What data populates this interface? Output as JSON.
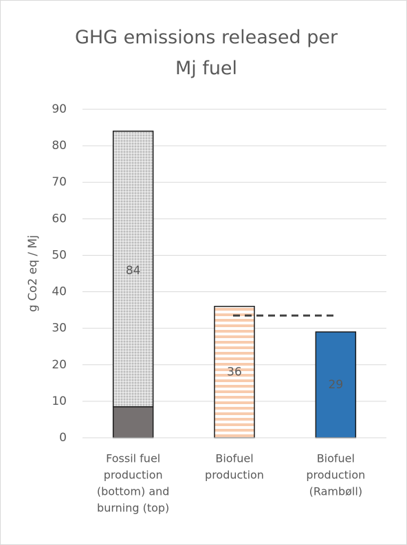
{
  "chart_data": {
    "type": "bar",
    "title": "GHG emissions released per Mj fuel",
    "y_label": "g Co2 eq / Mj",
    "categories": [
      [
        "Fossil fuel",
        "production",
        "(bottom) and",
        "burning (top)"
      ],
      [
        "Biofuel",
        "production"
      ],
      [
        "Biofuel",
        "production",
        "(Rambøll)"
      ]
    ],
    "series": [
      {
        "color": "#767171",
        "values": [
          8.5,
          null,
          null
        ]
      },
      {
        "color": "#d9d9d9",
        "pattern": "dots",
        "values": [
          75.5,
          null,
          null
        ]
      },
      {
        "color": "#f8cbad",
        "pattern": "stripes",
        "values": [
          null,
          36,
          null
        ]
      },
      {
        "color": "#2e75b6",
        "values": [
          null,
          null,
          29
        ]
      }
    ],
    "totals": [
      84,
      36,
      29
    ],
    "reference_line": 33.5,
    "ylim": [
      0,
      90
    ],
    "yticks": [
      0,
      10,
      20,
      30,
      40,
      50,
      60,
      70,
      80,
      90
    ],
    "grid": true
  }
}
